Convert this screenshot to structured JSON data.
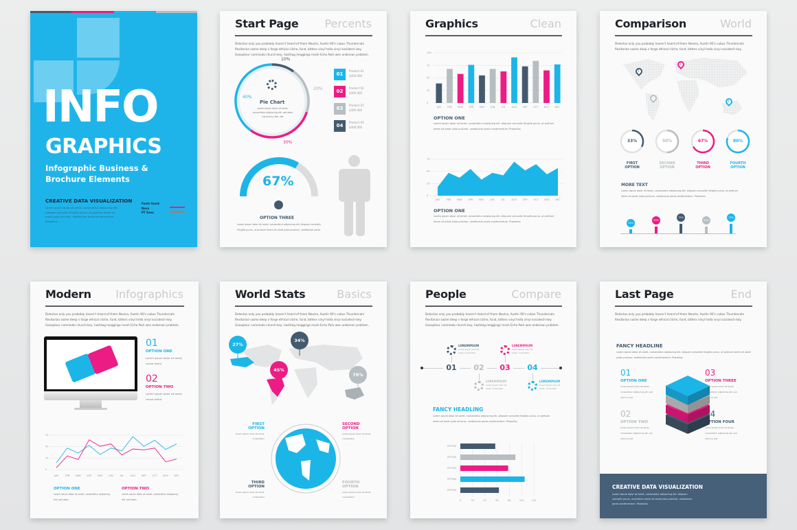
{
  "colors": {
    "cyan": "#1cb5e8",
    "pink": "#ec1c84",
    "gray": "#b7bec1",
    "dark": "#435a6e",
    "cover_bg": "#1eb4ea"
  },
  "lorem": "Lorem ipsum dolor sit amet, consectetur adipiscing elit. Aliquam convallis fringilla purus, ut pretium lorem sit amet justo pulvinar, vestibulum porta condimentum. Phasellus",
  "intro": "Delectus only you probably haven't heard of them Neutra, Austin 90's cubus Thundercats flexitarian sashe deep v forge ethical cliche, fund, bitters vinyl hella vinyl sociatech-key. Gasopteur commodo church-key, hashtag meggings mosh Echo Park wes anderson problem.",
  "cover": {
    "title_big": "INFO",
    "title_sub": "GRAPHICS",
    "subtitle_1": "Infographic Business &",
    "subtitle_2": "Brochure Elements",
    "section": "CREATIVE DATA VISUALIZATION",
    "body": "Lorem ipsum dolor sit amet, consectetur adipiscing elit. Aliquam convallis fringilla purus. Ut pretium lorem sit amet justo pulvinar, vestibulum porta condimentum. Phasellus",
    "legend": [
      "Fonts Used:",
      "Nexa",
      "PT Sans"
    ]
  },
  "start_page": {
    "title": "Start Page",
    "subtitle": "Percents",
    "pie_title": "Pie Chart",
    "pie_text": "Lorem ipsum dolor sit amet, consectetur adipiscing elit, sed diam nonummy nibh, eat",
    "pie": [
      {
        "label": "10%",
        "value": 10,
        "color": "dark"
      },
      {
        "label": "20%",
        "value": 20,
        "color": "gray"
      },
      {
        "label": "30%",
        "value": 30,
        "color": "pink"
      },
      {
        "label": "40%",
        "value": 40,
        "color": "cyan"
      }
    ],
    "legend": [
      {
        "num": "01",
        "name": "Product 01",
        "value": "$400.000"
      },
      {
        "num": "02",
        "name": "Product 02",
        "value": "$400.000"
      },
      {
        "num": "03",
        "name": "Product 03",
        "value": "$300.000"
      },
      {
        "num": "04",
        "name": "Product 04",
        "value": "$400.000"
      }
    ],
    "gauge_value": 67,
    "gauge_label": "67%",
    "option": "OPTION THREE"
  },
  "graphics": {
    "title": "Graphics",
    "subtitle": "Clean",
    "option_1": "OPTION ONE",
    "option_2": "OPTION ONE"
  },
  "comparison": {
    "title": "Comparison",
    "subtitle": "World",
    "pins": [
      "1",
      "2",
      "3",
      "4"
    ],
    "rings": [
      {
        "value": 33,
        "label": "33%",
        "line1": "FIRST",
        "line2": "OPTION",
        "color": "dark"
      },
      {
        "value": 50,
        "label": "50%",
        "line1": "SECOND",
        "line2": "OPTION",
        "color": "gray"
      },
      {
        "value": 67,
        "label": "67%",
        "line1": "THIRD",
        "line2": "OPTION",
        "color": "pink"
      },
      {
        "value": 80,
        "label": "80%",
        "line1": "FOURTH",
        "line2": "OPTION",
        "color": "cyan"
      }
    ],
    "more_text": "MORE TEXT",
    "lollipops": [
      {
        "label": "20%",
        "value": 20,
        "color": "cyan"
      },
      {
        "label": "50%",
        "value": 50,
        "color": "pink"
      },
      {
        "label": "75%",
        "value": 75,
        "color": "dark"
      },
      {
        "label": "50%",
        "value": 50,
        "color": "gray"
      },
      {
        "label": "75%",
        "value": 75,
        "color": "cyan"
      }
    ]
  },
  "modern": {
    "title": "Modern",
    "subtitle": "Infographics",
    "items": [
      {
        "num": "01",
        "label": "OPTION ONE",
        "text": "Lorem ipsum dolor sit amet, conse ctetur"
      },
      {
        "num": "02",
        "label": "OPTION TWO",
        "text": "Lorem ipsum dolor sit amet, conse ctetur"
      }
    ],
    "legend_1": "OPTION ONE",
    "legend_2": "OPTION TWO",
    "legend_text": "Lorem ipsum dolor sit amet, consectetur adipiscing elit, sed diam"
  },
  "world_stats": {
    "title": "World Stats",
    "subtitle": "Basics",
    "bubbles": [
      {
        "label": "27%",
        "color": "cyan"
      },
      {
        "label": "34%",
        "color": "dark"
      },
      {
        "label": "45%",
        "color": "pink"
      },
      {
        "label": "76%",
        "color": "gray"
      }
    ],
    "options": [
      {
        "l1": "FIRST",
        "l2": "OPTION",
        "color": "cyan"
      },
      {
        "l1": "SECOND",
        "l2": "OPTION",
        "color": "pink"
      },
      {
        "l1": "THIRD",
        "l2": "OPTION",
        "color": "dark"
      },
      {
        "l1": "FOURTH",
        "l2": "OPTION",
        "color": "gray"
      }
    ],
    "option_text": "Lorem ipsum dolor sit amet, consectetur"
  },
  "people": {
    "title": "People",
    "subtitle": "Compare",
    "steps": [
      {
        "num": "01",
        "head": "LOREMIPSUM",
        "color": "dark"
      },
      {
        "num": "02",
        "head": "LOREMIPSUM",
        "color": "gray"
      },
      {
        "num": "03",
        "head": "LOREMIPSUM",
        "color": "pink"
      },
      {
        "num": "04",
        "head": "LOREMIPSUM",
        "color": "cyan"
      }
    ],
    "step_text": "Lorem ipsum dolor sit amet, consectetur",
    "fancy": "FANCY HEADLING"
  },
  "last_page": {
    "title": "Last Page",
    "subtitle": "End",
    "fancy": "FANCY HEADLINE",
    "items": [
      {
        "num": "01",
        "label": "OPTION ONE",
        "color": "cyan"
      },
      {
        "num": "02",
        "label": "OPTION TWO",
        "color": "gray"
      },
      {
        "num": "03",
        "label": "OPTION THREE",
        "color": "pink"
      },
      {
        "num": "04",
        "label": "OPTION FOUR",
        "color": "dark"
      }
    ],
    "item_text": "Lorem ipsum dolor sit amet, consectetur adipiscing elit, sed diam no eat",
    "footer_title": "CREATIVE DATA VISUALIZATION",
    "footer_text": "Lorem ipsum dolor sit amet, consectetur adipiscing elit. Aliquam convallis purus, ut pretium lorem sit amet justo pulvinar, vestibulum porta condimentum. Phasellus"
  },
  "chart_data": [
    {
      "type": "bar",
      "categories": [
        "JAN",
        "FEB",
        "MAR",
        "APR",
        "MAY",
        "JUN",
        "JUL",
        "AUG",
        "SEP",
        "OCT",
        "NOV",
        "DEC"
      ],
      "values": [
        39,
        68,
        58,
        76,
        55,
        68,
        63,
        91,
        73,
        84,
        65,
        77
      ],
      "colors": [
        "dark",
        "gray",
        "pink",
        "cyan",
        "dark",
        "gray",
        "pink",
        "cyan",
        "dark",
        "gray",
        "pink",
        "cyan"
      ],
      "yticks": [
        "0",
        "25",
        "50",
        "75",
        "100"
      ],
      "ylim": [
        0,
        100
      ],
      "grid": true
    },
    {
      "type": "area",
      "categories": [
        "JAN",
        "FEB",
        "MAR",
        "APR",
        "MAY",
        "JUN",
        "JUL",
        "AUG",
        "SEP",
        "OCT",
        "NOV",
        "DEC"
      ],
      "values": [
        18,
        47,
        37,
        55,
        33,
        47,
        42,
        70,
        52,
        65,
        44,
        57
      ],
      "yticks": [
        "0",
        "25",
        "50",
        "75"
      ],
      "ylim": [
        0,
        75
      ],
      "grid": true
    },
    {
      "type": "line",
      "categories": [
        "JAN",
        "FEB",
        "MAR",
        "APR",
        "MAY",
        "JUN",
        "JUL",
        "AUG",
        "SEP",
        "OCT",
        "NOV",
        "DEC"
      ],
      "series": [
        {
          "values": [
            15,
            47,
            36,
            53,
            33,
            47,
            41,
            72,
            51,
            64,
            44,
            56
          ],
          "color": "cyan"
        },
        {
          "values": [
            4,
            30,
            22,
            65,
            51,
            56,
            32,
            45,
            43,
            47,
            17,
            23
          ],
          "color": "pink"
        }
      ],
      "yticks": [
        "0",
        "25",
        "50",
        "75"
      ],
      "ylim": [
        0,
        75
      ],
      "grid": true
    },
    {
      "type": "bar",
      "orientation": "horizontal",
      "categories": [
        "OPTION",
        "OPTION",
        "OPTION",
        "OPTION",
        "OPTION"
      ],
      "values": [
        57,
        90,
        78,
        105,
        63
      ],
      "colors": [
        "dark",
        "gray",
        "pink",
        "cyan",
        "dark"
      ],
      "xticks": [
        "0",
        "20",
        "40",
        "60",
        "80",
        "100",
        "120"
      ],
      "xlim": [
        0,
        120
      ],
      "grid": true
    }
  ]
}
